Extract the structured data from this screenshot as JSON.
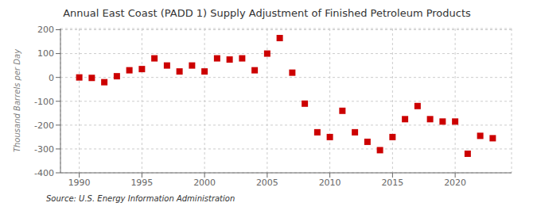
{
  "chart_data": {
    "type": "scatter",
    "title": "Annual East Coast (PADD 1) Supply Adjustment of Finished Petroleum Products",
    "y_label": "Thousand Barrels per Day",
    "annotation": "Source: U.S. Energy Information Administration",
    "x": [
      1990,
      1991,
      1992,
      1993,
      1994,
      1995,
      1996,
      1997,
      1998,
      1999,
      2000,
      2001,
      2002,
      2003,
      2004,
      2005,
      2006,
      2007,
      2008,
      2009,
      2010,
      2011,
      2012,
      2013,
      2014,
      2015,
      2016,
      2017,
      2018,
      2019,
      2020,
      2021,
      2022,
      2023
    ],
    "values": [
      0,
      -2,
      -20,
      5,
      30,
      35,
      80,
      50,
      25,
      50,
      25,
      80,
      75,
      80,
      30,
      100,
      165,
      20,
      -110,
      -230,
      -250,
      -140,
      -230,
      -270,
      -305,
      -250,
      -175,
      -120,
      -175,
      -185,
      -185,
      -320,
      -245,
      -255
    ],
    "color": "#cc0000",
    "marker": "square",
    "xlim": [
      1988.5,
      2024.5
    ],
    "ylim": [
      -400,
      205
    ],
    "xticks": [
      1990,
      1995,
      2000,
      2005,
      2010,
      2015,
      2020
    ],
    "yticks": [
      -400,
      -300,
      -200,
      -100,
      0,
      100,
      200
    ],
    "grid": true
  }
}
